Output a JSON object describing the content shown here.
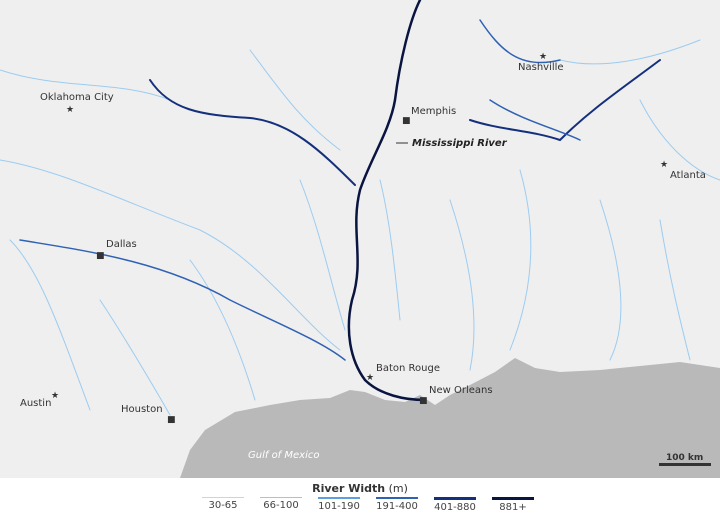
{
  "map": {
    "cities": [
      {
        "name": "Oklahoma City",
        "marker": "star"
      },
      {
        "name": "Dallas",
        "marker": "square"
      },
      {
        "name": "Austin",
        "marker": "star"
      },
      {
        "name": "Houston",
        "marker": "square"
      },
      {
        "name": "Memphis",
        "marker": "square"
      },
      {
        "name": "Nashville",
        "marker": "star"
      },
      {
        "name": "Atlanta",
        "marker": "star"
      },
      {
        "name": "Baton Rouge",
        "marker": "star"
      },
      {
        "name": "New Orleans",
        "marker": "square"
      }
    ],
    "river_label": "Mississippi River",
    "water_label": "Gulf of Mexico",
    "scale_label": "100 km",
    "colors": {
      "land": "#efefef",
      "water": "#b9b9b9",
      "river_dark": "#0a1645"
    }
  },
  "legend": {
    "title": "River Width",
    "unit": "(m)",
    "items": [
      {
        "label": "30-65",
        "color": "#b4dcf5"
      },
      {
        "label": "66-100",
        "color": "#96c8ee"
      },
      {
        "label": "101-190",
        "color": "#5f9fe0"
      },
      {
        "label": "191-400",
        "color": "#2f62b4"
      },
      {
        "label": "401-880",
        "color": "#142f7c"
      },
      {
        "label": "881+",
        "color": "#0a1440"
      }
    ]
  }
}
